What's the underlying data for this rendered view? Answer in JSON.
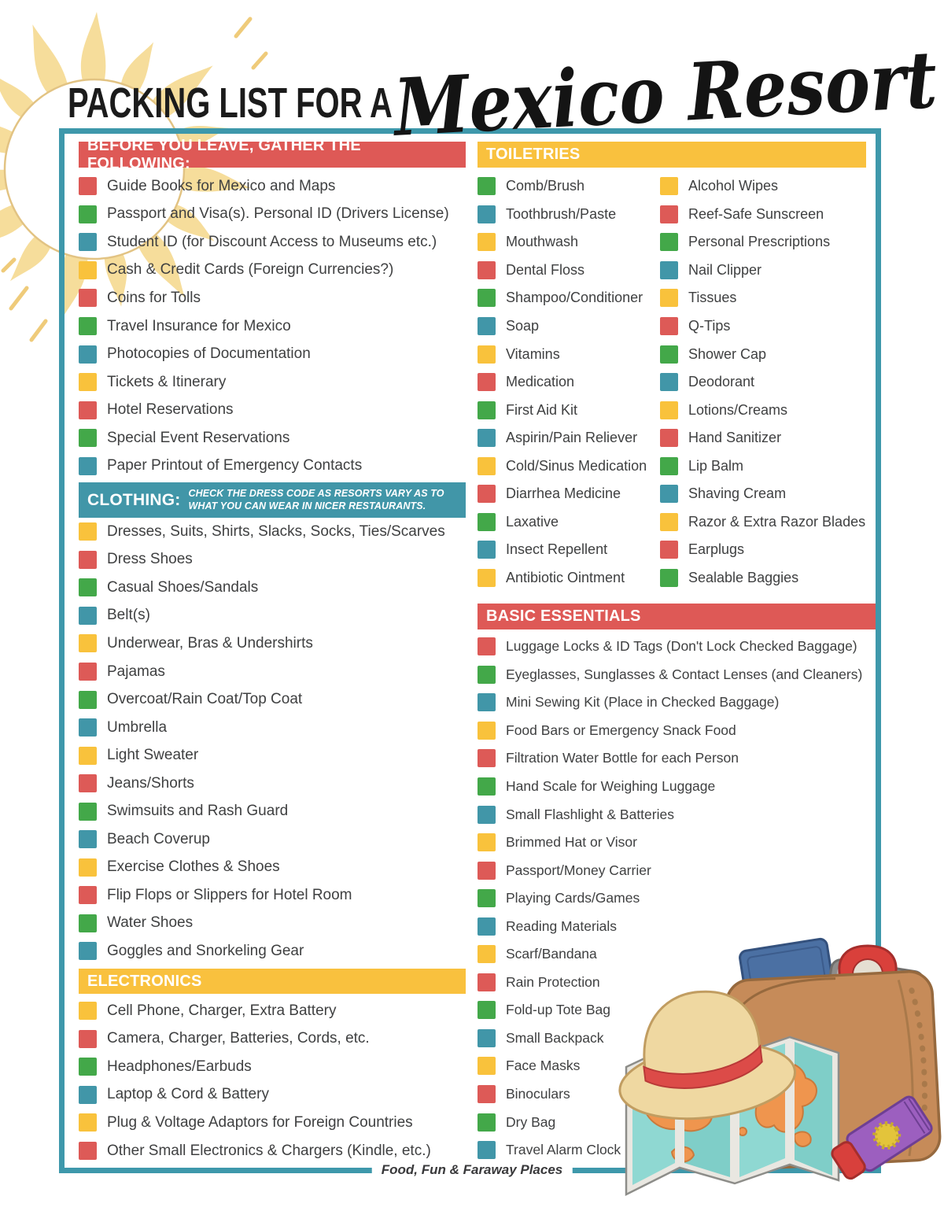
{
  "title": {
    "prefix": "PACKING LIST FOR A",
    "script": "Mexico Resort"
  },
  "footer": "Food, Fun & Faraway Places",
  "colors": {
    "red": "#DD5A57",
    "green": "#43A849",
    "teal": "#4196A8",
    "yellow": "#F9C23C",
    "border": "#3E98AB",
    "header_red": "#DE5956",
    "header_yellow": "#F9C13E",
    "header_teal": "#4196A8",
    "text": "#3F4041"
  },
  "sections": {
    "before": {
      "header": "BEFORE YOU LEAVE, GATHER THE FOLLOWING:",
      "items": [
        {
          "label": "Guide Books for Mexico and Maps",
          "color": "red"
        },
        {
          "label": "Passport and Visa(s). Personal ID (Drivers License)",
          "color": "green"
        },
        {
          "label": "Student ID (for Discount Access to Museums etc.)",
          "color": "teal"
        },
        {
          "label": "Cash & Credit Cards (Foreign Currencies?)",
          "color": "yellow"
        },
        {
          "label": "Coins for Tolls",
          "color": "red"
        },
        {
          "label": "Travel Insurance for Mexico",
          "color": "green"
        },
        {
          "label": "Photocopies of Documentation",
          "color": "teal"
        },
        {
          "label": "Tickets & Itinerary",
          "color": "yellow"
        },
        {
          "label": "Hotel Reservations",
          "color": "red"
        },
        {
          "label": "Special Event Reservations",
          "color": "green"
        },
        {
          "label": "Paper Printout of Emergency Contacts",
          "color": "teal"
        }
      ]
    },
    "clothing": {
      "header": "CLOTHING:",
      "note": "CHECK THE DRESS CODE AS RESORTS VARY AS TO WHAT YOU CAN WEAR IN NICER RESTAURANTS.",
      "items": [
        {
          "label": "Dresses, Suits, Shirts, Slacks, Socks, Ties/Scarves",
          "color": "yellow"
        },
        {
          "label": "Dress Shoes",
          "color": "red"
        },
        {
          "label": "Casual Shoes/Sandals",
          "color": "green"
        },
        {
          "label": "Belt(s)",
          "color": "teal"
        },
        {
          "label": "Underwear, Bras & Undershirts",
          "color": "yellow"
        },
        {
          "label": "Pajamas",
          "color": "red"
        },
        {
          "label": "Overcoat/Rain Coat/Top Coat",
          "color": "green"
        },
        {
          "label": "Umbrella",
          "color": "teal"
        },
        {
          "label": "Light Sweater",
          "color": "yellow"
        },
        {
          "label": "Jeans/Shorts",
          "color": "red"
        },
        {
          "label": "Swimsuits and Rash Guard",
          "color": "green"
        },
        {
          "label": "Beach Coverup",
          "color": "teal"
        },
        {
          "label": "Exercise Clothes & Shoes",
          "color": "yellow"
        },
        {
          "label": "Flip Flops or Slippers for Hotel Room",
          "color": "red"
        },
        {
          "label": "Water Shoes",
          "color": "green"
        },
        {
          "label": "Goggles and Snorkeling Gear",
          "color": "teal"
        }
      ]
    },
    "electronics": {
      "header": "ELECTRONICS",
      "items": [
        {
          "label": "Cell Phone, Charger, Extra Battery",
          "color": "yellow"
        },
        {
          "label": "Camera, Charger, Batteries, Cords, etc.",
          "color": "red"
        },
        {
          "label": "Headphones/Earbuds",
          "color": "green"
        },
        {
          "label": "Laptop & Cord & Battery",
          "color": "teal"
        },
        {
          "label": "Plug & Voltage Adaptors for Foreign Countries",
          "color": "yellow"
        },
        {
          "label": "Other Small Electronics & Chargers (Kindle, etc.)",
          "color": "red"
        }
      ]
    },
    "toiletries": {
      "header": "TOILETRIES",
      "left": [
        {
          "label": "Comb/Brush",
          "color": "green"
        },
        {
          "label": "Toothbrush/Paste",
          "color": "teal"
        },
        {
          "label": "Mouthwash",
          "color": "yellow"
        },
        {
          "label": "Dental Floss",
          "color": "red"
        },
        {
          "label": "Shampoo/Conditioner",
          "color": "green"
        },
        {
          "label": "Soap",
          "color": "teal"
        },
        {
          "label": "Vitamins",
          "color": "yellow"
        },
        {
          "label": "Medication",
          "color": "red"
        },
        {
          "label": "First Aid Kit",
          "color": "green"
        },
        {
          "label": "Aspirin/Pain Reliever",
          "color": "teal"
        },
        {
          "label": "Cold/Sinus Medication",
          "color": "yellow"
        },
        {
          "label": "Diarrhea Medicine",
          "color": "red"
        },
        {
          "label": "Laxative",
          "color": "green"
        },
        {
          "label": "Insect Repellent",
          "color": "teal"
        },
        {
          "label": "Antibiotic Ointment",
          "color": "yellow"
        }
      ],
      "right": [
        {
          "label": "Alcohol Wipes",
          "color": "yellow"
        },
        {
          "label": "Reef-Safe Sunscreen",
          "color": "red"
        },
        {
          "label": "Personal Prescriptions",
          "color": "green"
        },
        {
          "label": "Nail Clipper",
          "color": "teal"
        },
        {
          "label": "Tissues",
          "color": "yellow"
        },
        {
          "label": "Q-Tips",
          "color": "red"
        },
        {
          "label": "Shower Cap",
          "color": "green"
        },
        {
          "label": "Deodorant",
          "color": "teal"
        },
        {
          "label": "Lotions/Creams",
          "color": "yellow"
        },
        {
          "label": "Hand Sanitizer",
          "color": "red"
        },
        {
          "label": "Lip Balm",
          "color": "green"
        },
        {
          "label": "Shaving Cream",
          "color": "teal"
        },
        {
          "label": "Razor & Extra Razor Blades",
          "color": "yellow"
        },
        {
          "label": "Earplugs",
          "color": "red"
        },
        {
          "label": "Sealable Baggies",
          "color": "green"
        }
      ]
    },
    "essentials": {
      "header": "BASIC ESSENTIALS",
      "items": [
        {
          "label": "Luggage Locks & ID Tags (Don't Lock Checked Baggage)",
          "color": "red"
        },
        {
          "label": "Eyeglasses, Sunglasses & Contact Lenses (and Cleaners)",
          "color": "green"
        },
        {
          "label": "Mini Sewing Kit (Place in Checked Baggage)",
          "color": "teal"
        },
        {
          "label": "Food Bars or Emergency Snack Food",
          "color": "yellow"
        },
        {
          "label": "Filtration Water Bottle for each Person",
          "color": "red"
        },
        {
          "label": "Hand Scale for Weighing Luggage",
          "color": "green"
        },
        {
          "label": "Small Flashlight & Batteries",
          "color": "teal"
        },
        {
          "label": "Brimmed Hat or Visor",
          "color": "yellow"
        },
        {
          "label": "Passport/Money Carrier",
          "color": "red"
        },
        {
          "label": "Playing Cards/Games",
          "color": "green"
        },
        {
          "label": "Reading Materials",
          "color": "teal"
        },
        {
          "label": "Scarf/Bandana",
          "color": "yellow"
        },
        {
          "label": "Rain Protection",
          "color": "red"
        },
        {
          "label": "Fold-up Tote Bag",
          "color": "green"
        },
        {
          "label": "Small Backpack",
          "color": "teal"
        },
        {
          "label": "Face Masks",
          "color": "yellow"
        },
        {
          "label": "Binoculars",
          "color": "red"
        },
        {
          "label": "Dry Bag",
          "color": "green"
        },
        {
          "label": "Travel Alarm Clock",
          "color": "teal"
        }
      ]
    }
  },
  "illustration": {
    "icons": [
      "sun-icon",
      "straw-hat-icon",
      "world-map-icon",
      "wallet-bag-icon",
      "passport-icon",
      "phone-map-icon",
      "location-pin-icon",
      "sunscreen-tube-icon"
    ]
  }
}
